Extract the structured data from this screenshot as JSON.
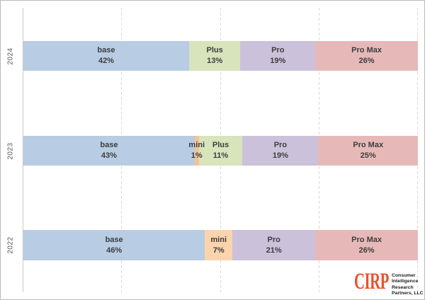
{
  "chart_data": {
    "type": "bar",
    "orientation": "horizontal",
    "stacked": true,
    "percent_stacked": true,
    "title": "",
    "xlabel": "",
    "ylabel": "",
    "xlim": [
      0,
      100
    ],
    "grid": "vertical-dashed",
    "gridline_positions_pct": [
      25,
      50,
      75,
      100
    ],
    "categories": [
      "2024",
      "2023",
      "2022"
    ],
    "series": [
      {
        "name": "base",
        "color": "#b8cce4",
        "values": [
          42,
          43,
          46
        ]
      },
      {
        "name": "mini",
        "color": "#fbd4ad",
        "values": [
          0,
          1,
          7
        ]
      },
      {
        "name": "Plus",
        "color": "#d7e4bc",
        "values": [
          13,
          11,
          0
        ]
      },
      {
        "name": "Pro",
        "color": "#ccc1da",
        "values": [
          19,
          19,
          21
        ]
      },
      {
        "name": "Pro Max",
        "color": "#e6b9b8",
        "values": [
          26,
          25,
          26
        ]
      }
    ],
    "rows": [
      {
        "year": "2024",
        "segments": [
          {
            "name": "base",
            "value": 42,
            "value_label": "42%",
            "color": "#b8cce4"
          },
          {
            "name": "Plus",
            "value": 13,
            "value_label": "13%",
            "color": "#d7e4bc"
          },
          {
            "name": "Pro",
            "value": 19,
            "value_label": "19%",
            "color": "#ccc1da"
          },
          {
            "name": "Pro Max",
            "value": 26,
            "value_label": "26%",
            "color": "#e6b9b8"
          }
        ]
      },
      {
        "year": "2023",
        "segments": [
          {
            "name": "base",
            "value": 43,
            "value_label": "43%",
            "color": "#b8cce4"
          },
          {
            "name": "mini",
            "value": 1,
            "value_label": "1%",
            "color": "#f6c290"
          },
          {
            "name": "Plus",
            "value": 11,
            "value_label": "11%",
            "color": "#d7e4bc"
          },
          {
            "name": "Pro",
            "value": 19,
            "value_label": "19%",
            "color": "#ccc1da"
          },
          {
            "name": "Pro Max",
            "value": 25,
            "value_label": "25%",
            "color": "#e6b9b8"
          }
        ]
      },
      {
        "year": "2022",
        "segments": [
          {
            "name": "base",
            "value": 46,
            "value_label": "46%",
            "color": "#b8cce4"
          },
          {
            "name": "mini",
            "value": 7,
            "value_label": "7%",
            "color": "#fbd4ad"
          },
          {
            "name": "Pro",
            "value": 21,
            "value_label": "21%",
            "color": "#ccc1da"
          },
          {
            "name": "Pro Max",
            "value": 26,
            "value_label": "26%",
            "color": "#e6b9b8"
          }
        ]
      }
    ]
  },
  "logo": {
    "abbr": "CIRP",
    "abbr_color": "#e8512d",
    "lines": [
      "Consumer",
      "Intelligence",
      "Research",
      "Partners, LLC"
    ]
  }
}
